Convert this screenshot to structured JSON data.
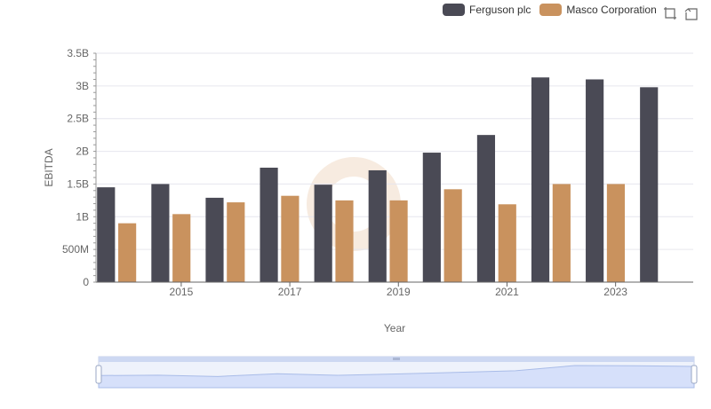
{
  "chart_data": {
    "type": "bar",
    "categories": [
      "2014",
      "2015",
      "2016",
      "2017",
      "2018",
      "2019",
      "2020",
      "2021",
      "2022",
      "2023",
      "2024"
    ],
    "x_tick_labels": [
      "2015",
      "2017",
      "2019",
      "2021",
      "2023"
    ],
    "series": [
      {
        "name": "Ferguson plc",
        "color": "#4a4a55",
        "values": [
          1.45,
          1.5,
          1.29,
          1.75,
          1.49,
          1.71,
          1.98,
          2.25,
          3.13,
          3.1,
          2.98
        ]
      },
      {
        "name": "Masco Corporation",
        "color": "#c9925e",
        "values": [
          0.9,
          1.04,
          1.22,
          1.32,
          1.25,
          1.25,
          1.42,
          1.19,
          1.5,
          1.5,
          null
        ]
      }
    ],
    "value_unit": "billions",
    "ylim": [
      0,
      3.5
    ],
    "y_ticks": [
      0,
      0.5,
      1,
      1.5,
      2,
      2.5,
      3,
      3.5
    ],
    "y_tick_labels": [
      "0",
      "500M",
      "1B",
      "1.5B",
      "2B",
      "2.5B",
      "3B",
      "3.5B"
    ],
    "xlabel": "Year",
    "ylabel": "EBITDA",
    "grid": true,
    "legend_position": "top-right"
  },
  "toolbox": {
    "zoom_icon": "zoom-icon",
    "restore_icon": "restore-icon"
  }
}
